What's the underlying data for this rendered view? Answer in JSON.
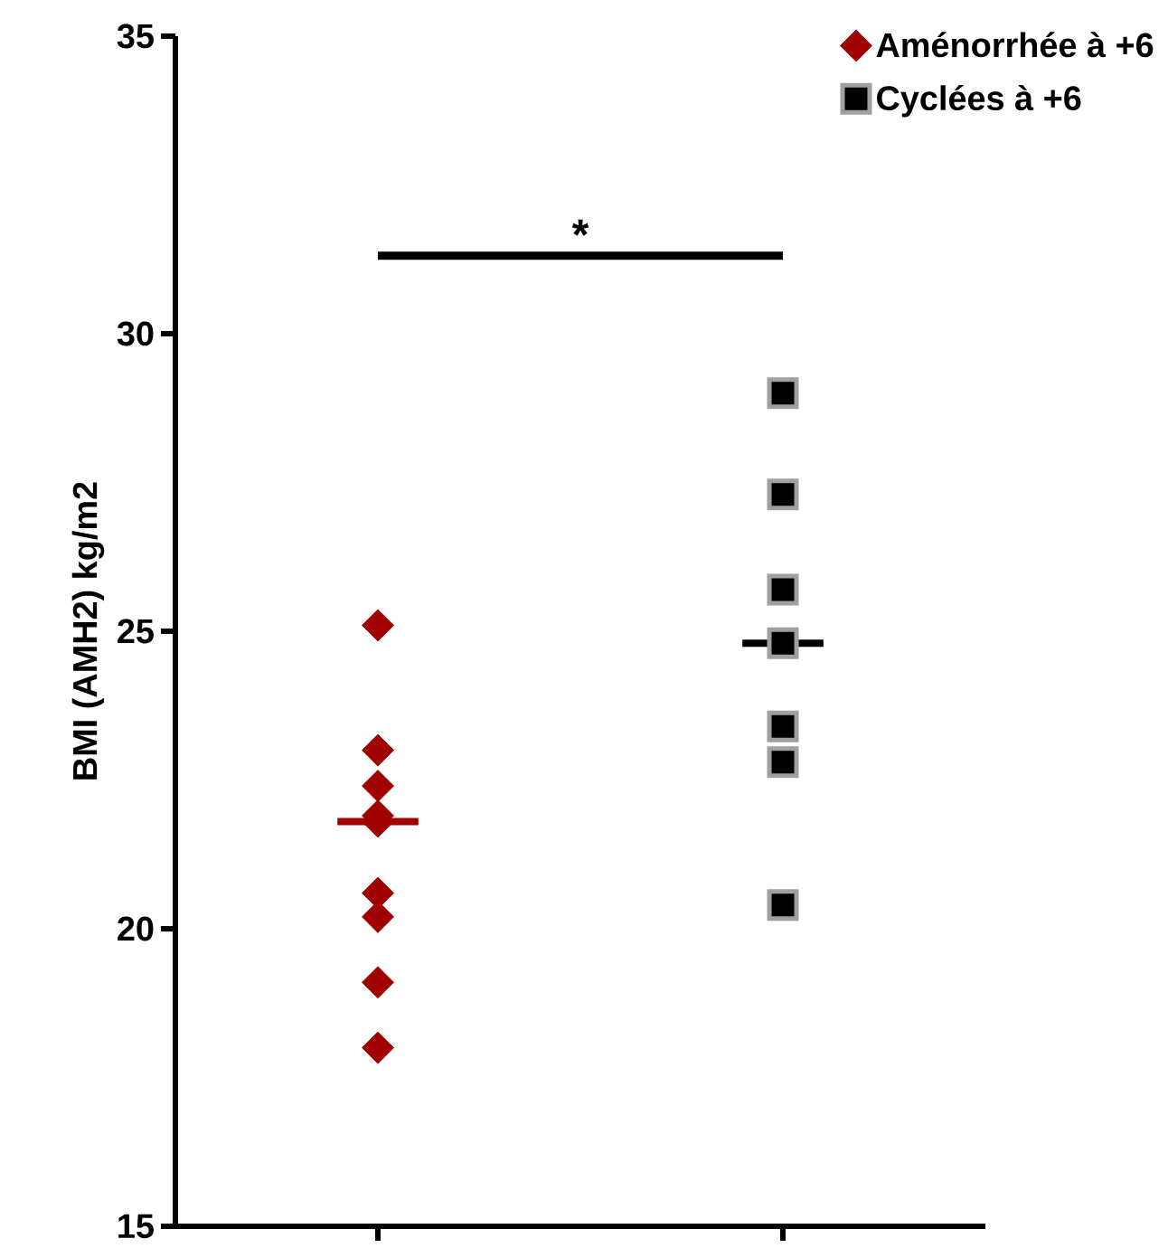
{
  "chart_data": {
    "type": "scatter",
    "ylabel": "BMI (AMH2) kg/m2",
    "categories": [
      null,
      null
    ],
    "ylim": [
      15,
      35
    ],
    "yticks": [
      15,
      20,
      25,
      30,
      35
    ],
    "series": [
      {
        "name": "Aménorrhée à +6",
        "color": "#a00000",
        "marker": "diamond",
        "values": [
          25.1,
          null
        ]
      },
      {
        "color": "#a00000",
        "marker": "diamond",
        "values": [
          23.0,
          null
        ]
      },
      {
        "color": "#a00000",
        "marker": "diamond",
        "values": [
          22.4,
          null
        ]
      },
      {
        "color": "#a00000",
        "marker": "diamond",
        "values": [
          21.9,
          null
        ]
      },
      {
        "color": "#a00000",
        "marker": "diamond",
        "values": [
          21.8,
          null
        ]
      },
      {
        "color": "#a00000",
        "marker": "diamond",
        "values": [
          20.6,
          null
        ]
      },
      {
        "color": "#a00000",
        "marker": "diamond",
        "values": [
          20.2,
          null
        ]
      },
      {
        "color": "#a00000",
        "marker": "diamond",
        "values": [
          19.1,
          null
        ]
      },
      {
        "color": "#a00000",
        "marker": "diamond",
        "values": [
          18.0,
          null
        ]
      },
      {
        "name": "Cyclées à +6",
        "color": "#000000",
        "marker": "square",
        "values": [
          null,
          29.0
        ]
      },
      {
        "color": "#000000",
        "marker": "square",
        "values": [
          null,
          27.3
        ]
      },
      {
        "color": "#000000",
        "marker": "square",
        "values": [
          null,
          25.7
        ]
      },
      {
        "color": "#000000",
        "marker": "square",
        "values": [
          null,
          24.8
        ]
      },
      {
        "color": "#000000",
        "marker": "square",
        "values": [
          null,
          23.4
        ]
      },
      {
        "color": "#000000",
        "marker": "square",
        "values": [
          null,
          22.8
        ]
      },
      {
        "color": "#000000",
        "marker": "square",
        "values": [
          null,
          20.4
        ]
      }
    ],
    "ref_lines": [
      {
        "axis": "y",
        "value": 21.8,
        "color": "#a00000"
      },
      {
        "axis": "y",
        "value": 24.8,
        "color": "#000000"
      }
    ],
    "annotations": [
      "*"
    ],
    "legend": "top right",
    "grid": false
  }
}
